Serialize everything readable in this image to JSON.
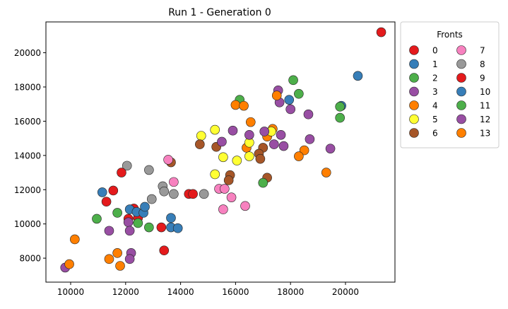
{
  "chart_data": {
    "type": "scatter",
    "title": "Run 1 - Generation 0",
    "xlabel": "",
    "ylabel": "",
    "xlim": [
      9100,
      21800
    ],
    "ylim": [
      6600,
      21800
    ],
    "xticks": [
      10000,
      12000,
      14000,
      16000,
      18000,
      20000
    ],
    "yticks": [
      8000,
      10000,
      12000,
      14000,
      16000,
      18000,
      20000
    ],
    "grid": false,
    "legend": {
      "title": "Fronts",
      "placement": "outside-right",
      "columns": 2
    },
    "series": [
      {
        "name": "0",
        "color": "#e41a1c",
        "points": [
          [
            21300,
            21200
          ]
        ]
      },
      {
        "name": "1",
        "color": "#377eb8",
        "points": [
          [
            20450,
            18650
          ],
          [
            19850,
            16900
          ],
          [
            17950,
            17250
          ]
        ]
      },
      {
        "name": "2",
        "color": "#4daf4a",
        "points": [
          [
            18100,
            18400
          ],
          [
            18300,
            17600
          ],
          [
            19800,
            16200
          ],
          [
            19800,
            16850
          ],
          [
            16150,
            17250
          ]
        ]
      },
      {
        "name": "3",
        "color": "#984ea3",
        "points": [
          [
            17550,
            17800
          ],
          [
            17600,
            17100
          ],
          [
            18000,
            16700
          ],
          [
            18650,
            16400
          ],
          [
            17650,
            15200
          ],
          [
            18700,
            14950
          ],
          [
            19450,
            14400
          ]
        ]
      },
      {
        "name": "4",
        "color": "#ff7f00",
        "points": [
          [
            17500,
            17500
          ],
          [
            16000,
            16950
          ],
          [
            16300,
            16900
          ],
          [
            16550,
            15950
          ],
          [
            17350,
            15550
          ],
          [
            17150,
            15100
          ],
          [
            16400,
            14450
          ],
          [
            18500,
            14300
          ],
          [
            18300,
            13950
          ],
          [
            19300,
            13000
          ]
        ]
      },
      {
        "name": "5",
        "color": "#ffff33",
        "points": [
          [
            17300,
            15400
          ],
          [
            15250,
            15500
          ],
          [
            14750,
            15150
          ],
          [
            16500,
            14750
          ],
          [
            15550,
            13900
          ],
          [
            16050,
            13700
          ],
          [
            16500,
            13950
          ],
          [
            15250,
            12900
          ]
        ]
      },
      {
        "name": "6",
        "color": "#a65628",
        "points": [
          [
            14700,
            14650
          ],
          [
            15300,
            14500
          ],
          [
            17000,
            14450
          ],
          [
            16850,
            14100
          ],
          [
            16900,
            13800
          ],
          [
            15800,
            12850
          ],
          [
            15750,
            12550
          ],
          [
            17150,
            12700
          ],
          [
            13650,
            13600
          ]
        ]
      },
      {
        "name": "7",
        "color": "#f781bf",
        "points": [
          [
            13550,
            13750
          ],
          [
            13750,
            12450
          ],
          [
            15400,
            12050
          ],
          [
            15600,
            12050
          ],
          [
            15850,
            11550
          ],
          [
            15550,
            10850
          ],
          [
            16350,
            11050
          ]
        ]
      },
      {
        "name": "8",
        "color": "#999999",
        "points": [
          [
            12050,
            13400
          ],
          [
            12850,
            13150
          ],
          [
            13350,
            12200
          ],
          [
            13400,
            11900
          ],
          [
            13750,
            11750
          ],
          [
            14850,
            11750
          ],
          [
            12950,
            11450
          ]
        ]
      },
      {
        "name": "9",
        "color": "#e41a1c",
        "points": [
          [
            11850,
            13000
          ],
          [
            11550,
            11950
          ],
          [
            11300,
            11300
          ],
          [
            14300,
            11750
          ],
          [
            14450,
            11750
          ],
          [
            12300,
            10900
          ],
          [
            12100,
            10300
          ],
          [
            12450,
            10350
          ],
          [
            13300,
            9800
          ],
          [
            13400,
            8450
          ]
        ]
      },
      {
        "name": "10",
        "color": "#377eb8",
        "points": [
          [
            11150,
            11850
          ],
          [
            12150,
            10850
          ],
          [
            12400,
            10700
          ],
          [
            12650,
            10650
          ],
          [
            12700,
            11000
          ],
          [
            13650,
            10350
          ],
          [
            13650,
            9800
          ],
          [
            13900,
            9750
          ]
        ]
      },
      {
        "name": "11",
        "color": "#4daf4a",
        "points": [
          [
            10950,
            10300
          ],
          [
            11700,
            10650
          ],
          [
            12450,
            10050
          ],
          [
            12850,
            9800
          ],
          [
            17000,
            12400
          ]
        ]
      },
      {
        "name": "12",
        "color": "#984ea3",
        "points": [
          [
            15900,
            15450
          ],
          [
            16500,
            15200
          ],
          [
            15500,
            14800
          ],
          [
            17050,
            15400
          ],
          [
            17400,
            14650
          ],
          [
            17750,
            14550
          ],
          [
            12100,
            10100
          ],
          [
            12150,
            9600
          ],
          [
            11400,
            9600
          ],
          [
            12200,
            8300
          ],
          [
            12150,
            7950
          ],
          [
            9800,
            7450
          ]
        ]
      },
      {
        "name": "13",
        "color": "#ff7f00",
        "points": [
          [
            10150,
            9100
          ],
          [
            11700,
            8300
          ],
          [
            11400,
            7950
          ],
          [
            11800,
            7550
          ],
          [
            9950,
            7650
          ]
        ]
      }
    ]
  }
}
